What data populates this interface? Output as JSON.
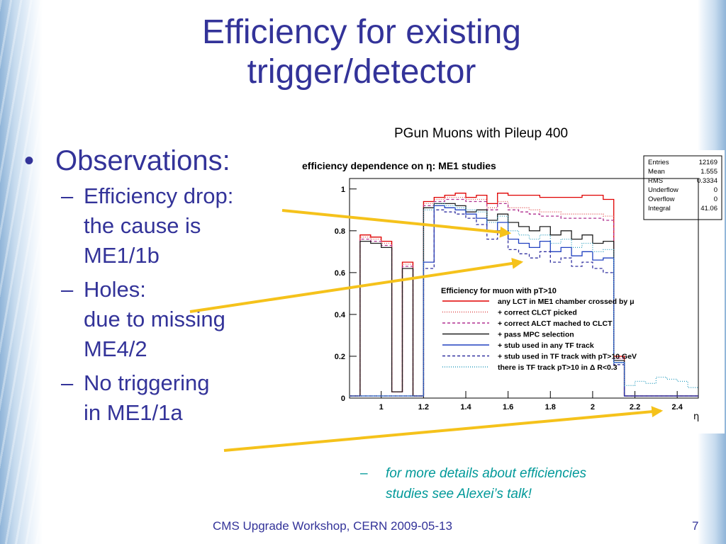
{
  "slide": {
    "title_line1": "Efficiency for existing",
    "title_line2": "trigger/detector",
    "subtitle": "PGun Muons with Pileup 400",
    "bullet": "Observations:",
    "subbullets": [
      {
        "line1": "Efficiency drop:",
        "line2": "the cause is",
        "line3": "ME1/1b"
      },
      {
        "line1": "Holes:",
        "line2": "due to missing",
        "line3": "ME4/2"
      },
      {
        "line1": "No triggering",
        "line2": "in ME1/1a",
        "line3": ""
      }
    ],
    "note_line1": "for more details about efficiencies",
    "note_line2": "studies see Alexei’s talk!",
    "footer": "CMS Upgrade Workshop, CERN 2009-05-13",
    "page_number": "7",
    "accent_color": "#333399",
    "arrow_color": "#f5c21b",
    "note_color": "#009999"
  },
  "chart_data": {
    "type": "line",
    "title": "efficiency dependence on η: ME1 studies",
    "xlabel": "η",
    "ylabel": "",
    "xlim": [
      0.85,
      2.5
    ],
    "ylim": [
      0,
      1.05
    ],
    "xticks": [
      "1",
      "1.2",
      "1.4",
      "1.6",
      "1.8",
      "2",
      "2.2",
      "2.4"
    ],
    "yticks": [
      "0",
      "0.2",
      "0.4",
      "0.6",
      "0.8",
      "1"
    ],
    "stats": [
      [
        "Entries",
        "12169"
      ],
      [
        "Mean",
        "1.555"
      ],
      [
        "RMS",
        "0.3334"
      ],
      [
        "Underflow",
        "0"
      ],
      [
        "Overflow",
        "0"
      ],
      [
        "Integral",
        "41.06"
      ]
    ],
    "legend_title": "Efficiency for muon with pT>10",
    "legend_placement": "center-right",
    "x": [
      0.85,
      0.9,
      0.95,
      1.0,
      1.05,
      1.1,
      1.15,
      1.2,
      1.25,
      1.3,
      1.35,
      1.4,
      1.45,
      1.5,
      1.55,
      1.6,
      1.65,
      1.7,
      1.75,
      1.8,
      1.85,
      1.9,
      1.95,
      2.0,
      2.05,
      2.1,
      2.15,
      2.2,
      2.25,
      2.3,
      2.35,
      2.4,
      2.45
    ],
    "series": [
      {
        "name": "any LCT in ME1 chamber crossed by μ",
        "color": "#e00000",
        "dash": "",
        "values": [
          0.01,
          0.78,
          0.77,
          0.75,
          0.03,
          0.65,
          0.01,
          0.94,
          0.96,
          0.97,
          0.98,
          0.96,
          0.97,
          0.93,
          0.98,
          0.97,
          0.97,
          0.97,
          0.96,
          0.96,
          0.96,
          0.96,
          0.97,
          0.97,
          0.95,
          0.2,
          0.01,
          0.01,
          0.01,
          0.01,
          0.01,
          0.01,
          0.01
        ]
      },
      {
        "name": "+ correct CLCT picked",
        "color": "#e05050",
        "dash": "1,2",
        "values": [
          0.01,
          0.77,
          0.76,
          0.74,
          0.03,
          0.64,
          0.01,
          0.93,
          0.95,
          0.96,
          0.96,
          0.95,
          0.95,
          0.91,
          0.94,
          0.91,
          0.91,
          0.9,
          0.89,
          0.89,
          0.88,
          0.88,
          0.88,
          0.88,
          0.87,
          0.19,
          0.01,
          0.01,
          0.01,
          0.01,
          0.01,
          0.01,
          0.01
        ]
      },
      {
        "name": "+ correct ALCT mached to CLCT",
        "color": "#b03090",
        "dash": "4,3",
        "values": [
          0.01,
          0.76,
          0.75,
          0.73,
          0.03,
          0.63,
          0.01,
          0.92,
          0.94,
          0.95,
          0.95,
          0.94,
          0.94,
          0.9,
          0.93,
          0.9,
          0.89,
          0.88,
          0.87,
          0.87,
          0.86,
          0.86,
          0.86,
          0.86,
          0.85,
          0.19,
          0.01,
          0.01,
          0.01,
          0.01,
          0.01,
          0.01,
          0.01
        ]
      },
      {
        "name": "+ pass MPC selection",
        "color": "#202020",
        "dash": "",
        "values": [
          0.01,
          0.75,
          0.74,
          0.72,
          0.03,
          0.62,
          0.01,
          0.91,
          0.93,
          0.93,
          0.92,
          0.89,
          0.9,
          0.85,
          0.88,
          0.84,
          0.82,
          0.8,
          0.82,
          0.78,
          0.8,
          0.76,
          0.78,
          0.74,
          0.75,
          0.18,
          0.01,
          0.01,
          0.01,
          0.01,
          0.01,
          0.01,
          0.01
        ]
      },
      {
        "name": "+ stub used in any TF track",
        "color": "#2040c0",
        "dash": "",
        "values": [
          0.01,
          0.01,
          0.01,
          0.01,
          0.01,
          0.01,
          0.01,
          0.65,
          0.92,
          0.91,
          0.9,
          0.88,
          0.86,
          0.8,
          0.84,
          0.76,
          0.74,
          0.72,
          0.75,
          0.7,
          0.72,
          0.68,
          0.7,
          0.66,
          0.67,
          0.17,
          0.01,
          0.01,
          0.01,
          0.01,
          0.01,
          0.01,
          0.01
        ]
      },
      {
        "name": "+ stub used in TF track with pT>10 GeV",
        "color": "#3030a0",
        "dash": "4,3",
        "values": [
          0.01,
          0.01,
          0.01,
          0.01,
          0.01,
          0.01,
          0.01,
          0.62,
          0.9,
          0.89,
          0.88,
          0.86,
          0.83,
          0.76,
          0.8,
          0.71,
          0.69,
          0.67,
          0.7,
          0.65,
          0.67,
          0.63,
          0.65,
          0.62,
          0.6,
          0.16,
          0.01,
          0.01,
          0.01,
          0.01,
          0.01,
          0.01,
          0.01
        ]
      },
      {
        "name": "there is TF track pT>10 in Δ R<0.3",
        "color": "#30a0c0",
        "dash": "1,2",
        "values": [
          0.01,
          0.01,
          0.01,
          0.01,
          0.01,
          0.01,
          0.01,
          0.9,
          0.93,
          0.92,
          0.91,
          0.9,
          0.89,
          0.84,
          0.87,
          0.8,
          0.78,
          0.76,
          0.78,
          0.74,
          0.76,
          0.72,
          0.74,
          0.7,
          0.71,
          0.17,
          0.06,
          0.08,
          0.07,
          0.1,
          0.09,
          0.08,
          0.05
        ]
      }
    ]
  }
}
